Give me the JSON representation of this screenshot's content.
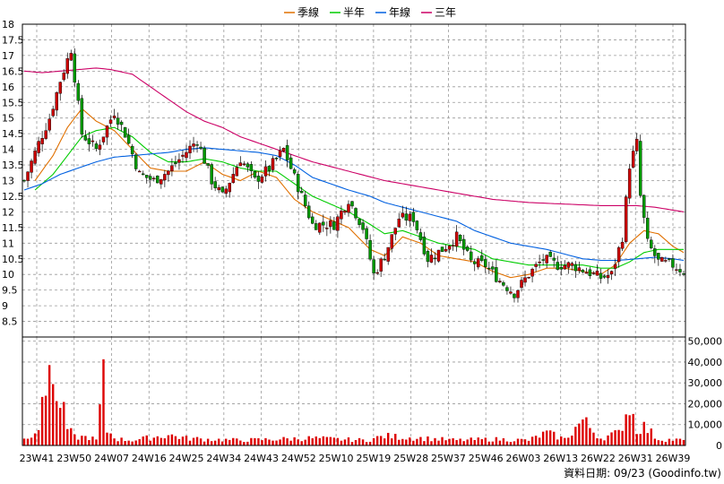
{
  "chart_data": {
    "type": "candlestick",
    "legend": [
      {
        "name": "季線",
        "color": "#e07000"
      },
      {
        "name": "半年",
        "color": "#00cc00"
      },
      {
        "name": "年線",
        "color": "#0060e0"
      },
      {
        "name": "三年",
        "color": "#cc0066"
      }
    ],
    "price_axis": {
      "ylim": [
        8,
        18
      ],
      "ticks": [
        "18",
        "17.5",
        "17",
        "16.5",
        "16",
        "15.5",
        "15",
        "14.5",
        "14",
        "13.5",
        "13",
        "12.5",
        "12",
        "11.5",
        "11",
        "10.5",
        "10",
        "9.5",
        "9",
        "8.5"
      ]
    },
    "volume_axis": {
      "ylim": [
        0,
        52000
      ],
      "ticks": [
        "50,000",
        "40,000",
        "30,000",
        "20,000",
        "10,000",
        "0"
      ]
    },
    "x_labels": [
      "23W41",
      "23W50",
      "24W07",
      "24W16",
      "24W25",
      "24W34",
      "24W43",
      "24W52",
      "25W10",
      "25W19",
      "25W28",
      "25W37",
      "25W46",
      "26W03",
      "26W13",
      "26W22",
      "26W31",
      "26W39"
    ],
    "up_color": "#cc0000",
    "down_color": "#009900",
    "volume_color": "#dd0000",
    "close_anchors": [
      [
        0,
        13.0
      ],
      [
        4,
        14.2
      ],
      [
        7,
        15.0
      ],
      [
        10,
        16.2
      ],
      [
        13,
        17.2
      ],
      [
        16,
        14.5
      ],
      [
        20,
        14.0
      ],
      [
        25,
        15.2
      ],
      [
        28,
        14.5
      ],
      [
        32,
        13.2
      ],
      [
        36,
        13.0
      ],
      [
        40,
        13.3
      ],
      [
        44,
        13.8
      ],
      [
        48,
        14.3
      ],
      [
        52,
        13.0
      ],
      [
        55,
        12.5
      ],
      [
        60,
        13.7
      ],
      [
        64,
        13.0
      ],
      [
        68,
        13.4
      ],
      [
        72,
        14.0
      ],
      [
        76,
        12.8
      ],
      [
        80,
        11.6
      ],
      [
        86,
        11.6
      ],
      [
        90,
        12.4
      ],
      [
        94,
        11.5
      ],
      [
        97,
        10.0
      ],
      [
        100,
        10.6
      ],
      [
        104,
        11.8
      ],
      [
        108,
        11.8
      ],
      [
        112,
        10.5
      ],
      [
        116,
        10.8
      ],
      [
        120,
        11.2
      ],
      [
        124,
        10.4
      ],
      [
        128,
        10.3
      ],
      [
        132,
        9.8
      ],
      [
        136,
        9.4
      ],
      [
        140,
        10.0
      ],
      [
        144,
        10.5
      ],
      [
        148,
        10.3
      ],
      [
        152,
        10.3
      ],
      [
        156,
        10.1
      ],
      [
        160,
        9.9
      ],
      [
        163,
        10.0
      ],
      [
        166,
        11.2
      ],
      [
        168,
        13.5
      ],
      [
        170,
        14.2
      ],
      [
        171,
        12.5
      ],
      [
        173,
        11.0
      ],
      [
        176,
        10.4
      ],
      [
        180,
        10.3
      ],
      [
        183,
        10.1
      ]
    ],
    "volume_anchors": [
      [
        0,
        3000
      ],
      [
        4,
        9000
      ],
      [
        6,
        25000
      ],
      [
        7,
        52000
      ],
      [
        8,
        30000
      ],
      [
        9,
        18000
      ],
      [
        10,
        22000
      ],
      [
        12,
        8000
      ],
      [
        14,
        4000
      ],
      [
        18,
        4000
      ],
      [
        20,
        2500
      ],
      [
        22,
        31000
      ],
      [
        23,
        7000
      ],
      [
        26,
        3000
      ],
      [
        30,
        2500
      ],
      [
        40,
        5000
      ],
      [
        45,
        3500
      ],
      [
        50,
        3000
      ],
      [
        60,
        2500
      ],
      [
        70,
        3000
      ],
      [
        80,
        3500
      ],
      [
        86,
        3000
      ],
      [
        95,
        2500
      ],
      [
        100,
        4500
      ],
      [
        110,
        3500
      ],
      [
        120,
        2500
      ],
      [
        130,
        3000
      ],
      [
        140,
        2500
      ],
      [
        145,
        6000
      ],
      [
        150,
        3000
      ],
      [
        155,
        12000
      ],
      [
        160,
        3500
      ],
      [
        165,
        6000
      ],
      [
        168,
        20000
      ],
      [
        170,
        8000
      ],
      [
        172,
        9000
      ],
      [
        176,
        3000
      ],
      [
        183,
        2500
      ]
    ],
    "ma_quarter_anchors": [
      [
        3,
        13.0
      ],
      [
        8,
        13.8
      ],
      [
        12,
        14.7
      ],
      [
        16,
        15.3
      ],
      [
        20,
        14.9
      ],
      [
        25,
        14.6
      ],
      [
        30,
        14.0
      ],
      [
        35,
        13.4
      ],
      [
        40,
        13.3
      ],
      [
        45,
        13.3
      ],
      [
        50,
        13.6
      ],
      [
        55,
        13.2
      ],
      [
        60,
        13.0
      ],
      [
        65,
        13.3
      ],
      [
        70,
        13.1
      ],
      [
        75,
        12.4
      ],
      [
        80,
        12.0
      ],
      [
        90,
        11.5
      ],
      [
        96,
        10.8
      ],
      [
        100,
        10.6
      ],
      [
        105,
        11.2
      ],
      [
        110,
        11.0
      ],
      [
        115,
        10.6
      ],
      [
        120,
        10.5
      ],
      [
        125,
        10.4
      ],
      [
        130,
        10.1
      ],
      [
        135,
        9.9
      ],
      [
        140,
        10.0
      ],
      [
        145,
        10.2
      ],
      [
        150,
        10.2
      ],
      [
        155,
        10.1
      ],
      [
        160,
        10.0
      ],
      [
        164,
        10.3
      ],
      [
        168,
        11.0
      ],
      [
        172,
        11.4
      ],
      [
        176,
        11.3
      ],
      [
        180,
        10.9
      ],
      [
        183,
        10.7
      ]
    ],
    "ma_half_anchors": [
      [
        3,
        12.7
      ],
      [
        8,
        13.2
      ],
      [
        12,
        13.8
      ],
      [
        16,
        14.4
      ],
      [
        20,
        14.6
      ],
      [
        25,
        14.7
      ],
      [
        30,
        14.4
      ],
      [
        35,
        13.9
      ],
      [
        40,
        13.6
      ],
      [
        45,
        13.6
      ],
      [
        50,
        13.7
      ],
      [
        55,
        13.6
      ],
      [
        60,
        13.4
      ],
      [
        65,
        13.3
      ],
      [
        70,
        13.3
      ],
      [
        75,
        12.9
      ],
      [
        80,
        12.5
      ],
      [
        90,
        12.0
      ],
      [
        96,
        11.6
      ],
      [
        100,
        11.3
      ],
      [
        105,
        11.4
      ],
      [
        110,
        11.2
      ],
      [
        115,
        11.0
      ],
      [
        120,
        10.9
      ],
      [
        125,
        10.8
      ],
      [
        130,
        10.5
      ],
      [
        135,
        10.4
      ],
      [
        140,
        10.3
      ],
      [
        145,
        10.3
      ],
      [
        150,
        10.3
      ],
      [
        155,
        10.3
      ],
      [
        160,
        10.2
      ],
      [
        164,
        10.2
      ],
      [
        168,
        10.4
      ],
      [
        172,
        10.7
      ],
      [
        176,
        10.8
      ],
      [
        180,
        10.8
      ],
      [
        183,
        10.8
      ]
    ],
    "ma_year_anchors": [
      [
        0,
        12.7
      ],
      [
        5,
        12.9
      ],
      [
        10,
        13.2
      ],
      [
        15,
        13.4
      ],
      [
        20,
        13.6
      ],
      [
        25,
        13.75
      ],
      [
        30,
        13.8
      ],
      [
        35,
        13.85
      ],
      [
        40,
        13.9
      ],
      [
        45,
        14.0
      ],
      [
        50,
        14.05
      ],
      [
        55,
        14.0
      ],
      [
        60,
        13.95
      ],
      [
        65,
        13.9
      ],
      [
        70,
        13.8
      ],
      [
        75,
        13.5
      ],
      [
        80,
        13.1
      ],
      [
        90,
        12.7
      ],
      [
        96,
        12.5
      ],
      [
        100,
        12.3
      ],
      [
        110,
        12.0
      ],
      [
        120,
        11.7
      ],
      [
        125,
        11.4
      ],
      [
        130,
        11.2
      ],
      [
        135,
        11.0
      ],
      [
        140,
        10.9
      ],
      [
        145,
        10.8
      ],
      [
        150,
        10.65
      ],
      [
        155,
        10.5
      ],
      [
        160,
        10.45
      ],
      [
        165,
        10.45
      ],
      [
        170,
        10.5
      ],
      [
        175,
        10.55
      ],
      [
        180,
        10.5
      ],
      [
        183,
        10.45
      ]
    ],
    "ma_3y_anchors": [
      [
        0,
        16.5
      ],
      [
        5,
        16.45
      ],
      [
        10,
        16.5
      ],
      [
        15,
        16.55
      ],
      [
        20,
        16.6
      ],
      [
        24,
        16.55
      ],
      [
        30,
        16.4
      ],
      [
        35,
        16.0
      ],
      [
        40,
        15.6
      ],
      [
        45,
        15.2
      ],
      [
        50,
        14.9
      ],
      [
        55,
        14.7
      ],
      [
        60,
        14.4
      ],
      [
        65,
        14.2
      ],
      [
        70,
        14.0
      ],
      [
        80,
        13.6
      ],
      [
        90,
        13.3
      ],
      [
        100,
        13.0
      ],
      [
        110,
        12.8
      ],
      [
        120,
        12.6
      ],
      [
        130,
        12.4
      ],
      [
        140,
        12.3
      ],
      [
        150,
        12.25
      ],
      [
        160,
        12.2
      ],
      [
        170,
        12.2
      ],
      [
        175,
        12.15
      ],
      [
        183,
        12.0
      ]
    ]
  },
  "source_text": "資料日期: 09/23 (Goodinfo.tw)"
}
